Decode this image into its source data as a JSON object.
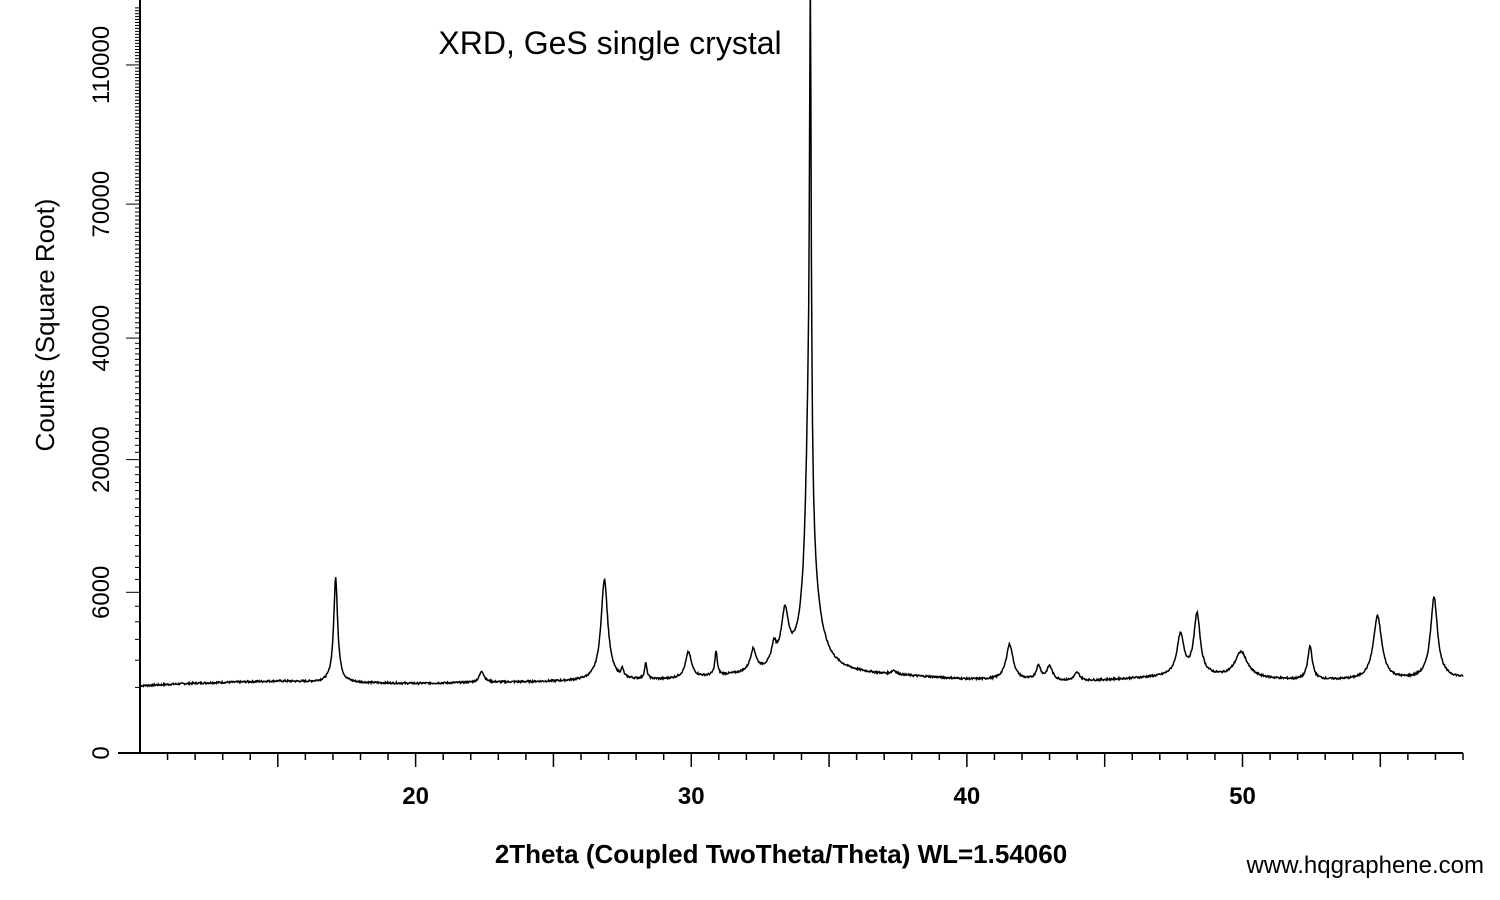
{
  "chart_data": {
    "type": "line",
    "title": "XRD, GeS single crystal",
    "xlabel": "2Theta (Coupled TwoTheta/Theta) WL=1.54060",
    "ylabel": "Counts (Square Root)",
    "yscale": "sqrt",
    "xlim": [
      10,
      58
    ],
    "ylim": [
      0,
      130000
    ],
    "x_ticks": [
      20,
      30,
      40,
      50
    ],
    "y_ticks": [
      0,
      6000,
      20000,
      40000,
      70000,
      110000
    ],
    "grid": false,
    "line_color": "#000000",
    "background": {
      "start_x": 10,
      "start_y": 1050,
      "points": [
        [
          12,
          1130
        ],
        [
          15,
          1200
        ],
        [
          17,
          1150
        ],
        [
          20,
          1120
        ],
        [
          25,
          1180
        ],
        [
          29,
          1230
        ],
        [
          33,
          1450
        ],
        [
          35,
          1480
        ],
        [
          38,
          1350
        ],
        [
          40,
          1250
        ],
        [
          44,
          1180
        ],
        [
          48,
          1380
        ],
        [
          52,
          1230
        ],
        [
          55,
          1230
        ],
        [
          58,
          1300
        ]
      ]
    },
    "peaks": [
      {
        "x": 17.1,
        "height": 6000,
        "width": 0.07
      },
      {
        "x": 22.4,
        "height": 400,
        "width": 0.1
      },
      {
        "x": 26.85,
        "height": 5800,
        "width": 0.12
      },
      {
        "x": 27.5,
        "height": 300,
        "width": 0.05
      },
      {
        "x": 28.35,
        "height": 600,
        "width": 0.05
      },
      {
        "x": 29.9,
        "height": 1050,
        "width": 0.12
      },
      {
        "x": 30.9,
        "height": 1000,
        "width": 0.05
      },
      {
        "x": 32.25,
        "height": 950,
        "width": 0.12
      },
      {
        "x": 33.4,
        "height": 2900,
        "width": 0.15
      },
      {
        "x": 33.0,
        "height": 900,
        "width": 0.1
      },
      {
        "x": 34.32,
        "height": 123000,
        "width": 0.03
      },
      {
        "x": 34.25,
        "height": 18000,
        "width": 0.1
      },
      {
        "x": 34.4,
        "height": 3000,
        "width": 0.3
      },
      {
        "x": 37.35,
        "height": 150,
        "width": 0.1
      },
      {
        "x": 41.55,
        "height": 1500,
        "width": 0.14
      },
      {
        "x": 42.6,
        "height": 520,
        "width": 0.1
      },
      {
        "x": 43.0,
        "height": 520,
        "width": 0.12
      },
      {
        "x": 44.0,
        "height": 300,
        "width": 0.12
      },
      {
        "x": 47.75,
        "height": 1850,
        "width": 0.14
      },
      {
        "x": 48.35,
        "height": 3100,
        "width": 0.12
      },
      {
        "x": 49.95,
        "height": 1050,
        "width": 0.25
      },
      {
        "x": 52.45,
        "height": 1400,
        "width": 0.09
      },
      {
        "x": 54.9,
        "height": 3100,
        "width": 0.16
      },
      {
        "x": 56.95,
        "height": 4350,
        "width": 0.13
      }
    ]
  },
  "watermark": "www.hqgraphene.com"
}
